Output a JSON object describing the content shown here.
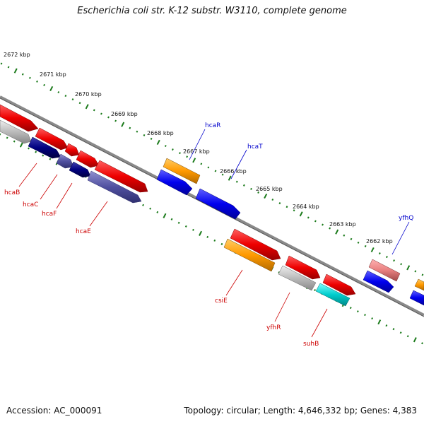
{
  "title": "Escherichia coli str. K-12 substr. W3110, complete genome",
  "footer": {
    "accession": "Accession: AC_000091",
    "summary": "Topology: circular; Length: 4,646,332 bp; Genes: 4,383"
  },
  "ticks": [
    {
      "label": "2672 kbp"
    },
    {
      "label": "2671 kbp"
    },
    {
      "label": "2670 kbp"
    },
    {
      "label": "2669 kbp"
    },
    {
      "label": "2668 kbp"
    },
    {
      "label": "2667 kbp"
    },
    {
      "label": "2666 kbp"
    },
    {
      "label": "2665 kbp"
    },
    {
      "label": "2664 kbp"
    },
    {
      "label": "2663 kbp"
    },
    {
      "label": "2662 kbp"
    }
  ],
  "genes": [
    {
      "name": "hcaR",
      "color": "#0000cc"
    },
    {
      "name": "hcaT",
      "color": "#0000cc"
    },
    {
      "name": "yfhQ",
      "color": "#0000cc"
    },
    {
      "name": "hcaB",
      "color": "#cc0000"
    },
    {
      "name": "hcaC",
      "color": "#cc0000"
    },
    {
      "name": "hcaF",
      "color": "#cc0000"
    },
    {
      "name": "hcaE",
      "color": "#cc0000"
    },
    {
      "name": "csiE",
      "color": "#cc0000"
    },
    {
      "name": "yfhR",
      "color": "#cc0000"
    },
    {
      "name": "suhB",
      "color": "#cc0000"
    }
  ],
  "colors": {
    "forward_gene": "#0000ee",
    "reverse_gene": "#ee0000",
    "orange_gene": "#ff9900",
    "gray_gene": "#bbbbbb",
    "navy_gene": "#000080",
    "cyan_gene": "#00cccc",
    "pink_gene": "#e88080",
    "tick": "#1a7a1a",
    "backbone": "#7a7a7a"
  }
}
